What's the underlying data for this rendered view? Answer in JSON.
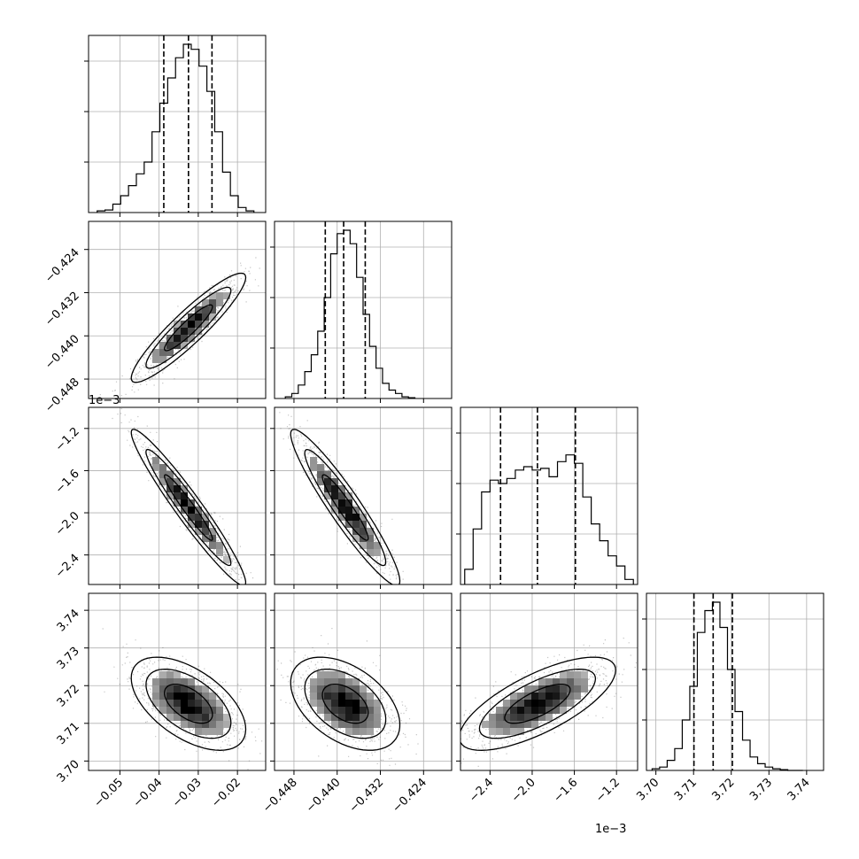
{
  "chart_data": {
    "type": "corner",
    "grid": true,
    "parameters": [
      {
        "index": 0,
        "range": [
          -0.058,
          -0.0128
        ],
        "ticks": [
          -0.05,
          -0.04,
          -0.03,
          -0.02
        ],
        "tick_labels": [
          "−0.05",
          "−0.04",
          "−0.03",
          "−0.02"
        ],
        "offset_text": "",
        "quantiles": [
          -0.0388,
          -0.0325,
          -0.0265
        ],
        "hist_bin_edges": [
          -0.0558,
          -0.0538,
          -0.0518,
          -0.0498,
          -0.0478,
          -0.0458,
          -0.0438,
          -0.0418,
          -0.0398,
          -0.0378,
          -0.0358,
          -0.0338,
          -0.0318,
          -0.0298,
          -0.0278,
          -0.0258,
          -0.0238,
          -0.0218,
          -0.0198,
          -0.0178,
          -0.0158
        ],
        "hist_counts": [
          0.01,
          0.015,
          0.05,
          0.1,
          0.16,
          0.23,
          0.3,
          0.48,
          0.65,
          0.8,
          0.92,
          1.0,
          0.97,
          0.87,
          0.72,
          0.48,
          0.24,
          0.1,
          0.03,
          0.01
        ]
      },
      {
        "index": 1,
        "range": [
          -0.4516,
          -0.4188
        ],
        "ticks": [
          -0.448,
          -0.44,
          -0.432,
          -0.424
        ],
        "tick_labels": [
          "−0.448",
          "−0.440",
          "−0.432",
          "−0.424"
        ],
        "offset_text": "",
        "quantiles": [
          -0.4422,
          -0.4388,
          -0.4348
        ],
        "hist_bin_edges": [
          -0.4496,
          -0.4484,
          -0.4472,
          -0.446,
          -0.4448,
          -0.4436,
          -0.4424,
          -0.4412,
          -0.44,
          -0.4388,
          -0.4376,
          -0.4364,
          -0.4352,
          -0.434,
          -0.4328,
          -0.4316,
          -0.4304,
          -0.4292,
          -0.428,
          -0.4268,
          -0.4256
        ],
        "hist_counts": [
          0.01,
          0.03,
          0.08,
          0.16,
          0.26,
          0.4,
          0.6,
          0.86,
          0.98,
          1.0,
          0.92,
          0.72,
          0.5,
          0.31,
          0.18,
          0.09,
          0.05,
          0.03,
          0.01,
          0.005
        ]
      },
      {
        "index": 2,
        "range": [
          -2.68,
          -1.0
        ],
        "ticks": [
          -2.4,
          -2.0,
          -1.6,
          -1.2
        ],
        "tick_labels": [
          "−2.4",
          "−2.0",
          "−1.6",
          "−1.2"
        ],
        "offset_text": "1e−3",
        "quantiles": [
          -2.3,
          -1.95,
          -1.59
        ],
        "hist_bin_edges": [
          -2.64,
          -2.56,
          -2.48,
          -2.4,
          -2.32,
          -2.24,
          -2.16,
          -2.08,
          -2.0,
          -1.92,
          -1.84,
          -1.76,
          -1.68,
          -1.6,
          -1.52,
          -1.44,
          -1.36,
          -1.28,
          -1.2,
          -1.12,
          -1.04
        ],
        "hist_counts": [
          0.09,
          0.33,
          0.55,
          0.62,
          0.6,
          0.63,
          0.68,
          0.7,
          0.68,
          0.69,
          0.64,
          0.73,
          0.77,
          0.72,
          0.52,
          0.36,
          0.26,
          0.17,
          0.11,
          0.03
        ]
      },
      {
        "index": 3,
        "range": [
          3.6975,
          3.7445
        ],
        "ticks": [
          3.7,
          3.71,
          3.72,
          3.73,
          3.74
        ],
        "tick_labels": [
          "3.70",
          "3.71",
          "3.72",
          "3.73",
          "3.74"
        ],
        "offset_text": "",
        "quantiles": [
          3.7101,
          3.7152,
          3.7203
        ],
        "hist_bin_edges": [
          3.699,
          3.701,
          3.703,
          3.705,
          3.707,
          3.709,
          3.711,
          3.713,
          3.715,
          3.717,
          3.719,
          3.721,
          3.723,
          3.725,
          3.727,
          3.729,
          3.731,
          3.733,
          3.735,
          3.737,
          3.739
        ],
        "hist_counts": [
          0.01,
          0.02,
          0.06,
          0.13,
          0.3,
          0.5,
          0.82,
          0.95,
          1.0,
          0.85,
          0.6,
          0.35,
          0.18,
          0.08,
          0.04,
          0.02,
          0.01,
          0.005,
          0.0,
          0.0
        ]
      }
    ],
    "pair_panels": [
      {
        "x": 0,
        "y": 1,
        "mean": [
          -0.0325,
          -0.4385
        ],
        "std": [
          0.0065,
          0.0045
        ],
        "rho": 0.92
      },
      {
        "x": 0,
        "y": 2,
        "mean": [
          -0.0325,
          -1.95
        ],
        "std": [
          0.0065,
          0.33
        ],
        "rho": -0.96
      },
      {
        "x": 1,
        "y": 2,
        "mean": [
          -0.4385,
          -1.95
        ],
        "std": [
          0.0045,
          0.33
        ],
        "rho": -0.94
      },
      {
        "x": 0,
        "y": 3,
        "mean": [
          -0.0325,
          3.7152
        ],
        "std": [
          0.0065,
          0.0055
        ],
        "rho": -0.55
      },
      {
        "x": 1,
        "y": 3,
        "mean": [
          -0.4385,
          3.7152
        ],
        "std": [
          0.0045,
          0.0055
        ],
        "rho": -0.45
      },
      {
        "x": 2,
        "y": 3,
        "mean": [
          -1.95,
          3.7152
        ],
        "std": [
          0.33,
          0.0055
        ],
        "rho": 0.72
      }
    ],
    "colors": {
      "line": "#000000",
      "grid": "#b0b0b0",
      "points": "#555555"
    }
  }
}
